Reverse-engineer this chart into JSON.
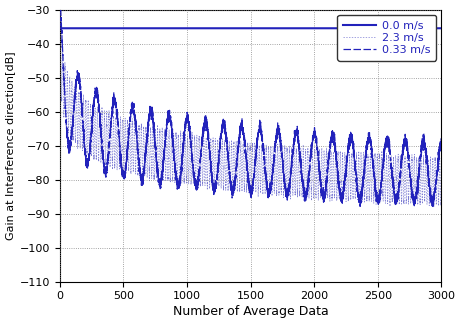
{
  "xlabel": "Number of Average Data",
  "ylabel": "Gain at Interference direction[dB]",
  "xlim": [
    0,
    3000
  ],
  "ylim": [
    -110,
    -30
  ],
  "yticks": [
    -110,
    -100,
    -90,
    -80,
    -70,
    -60,
    -50,
    -40,
    -30
  ],
  "xticks": [
    0,
    500,
    1000,
    1500,
    2000,
    2500,
    3000
  ],
  "line_color_solid": "#2222bb",
  "line_color_dashed": "#2222bb",
  "line_color_dotted": "#6666cc",
  "legend_labels": [
    "0.0 m/s",
    "0.33 m/s",
    "2.3 m/s"
  ],
  "v0_level": -35.5,
  "N": 3000,
  "n_points": 6000,
  "freq_slow": 0.007,
  "freq_fast": 0.055,
  "phase_slow": 1.5,
  "phase_fast": 0.0
}
